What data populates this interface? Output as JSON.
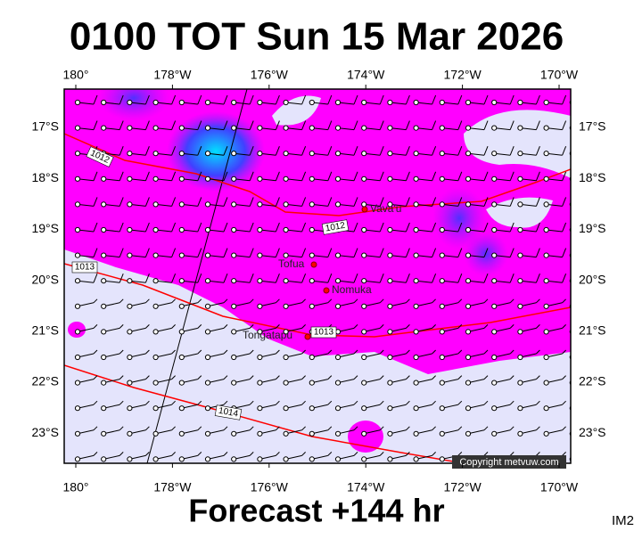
{
  "title": "0100 TOT Sun 15 Mar 2026",
  "footer": "Forecast +144 hr",
  "corner_label": "IM2",
  "copyright": "Copyright metvuw.com",
  "map": {
    "lon_labels": [
      "180°",
      "178°W",
      "176°W",
      "174°W",
      "172°W",
      "170°W"
    ],
    "lat_labels": [
      "17°S",
      "18°S",
      "19°S",
      "20°S",
      "21°S",
      "22°S",
      "23°S"
    ],
    "places": [
      "Vava'u",
      "Tofua",
      "Nomuka",
      "Tongatapu"
    ],
    "isobar_labels": [
      "1012",
      "1012",
      "1013",
      "1013",
      "1014"
    ]
  }
}
